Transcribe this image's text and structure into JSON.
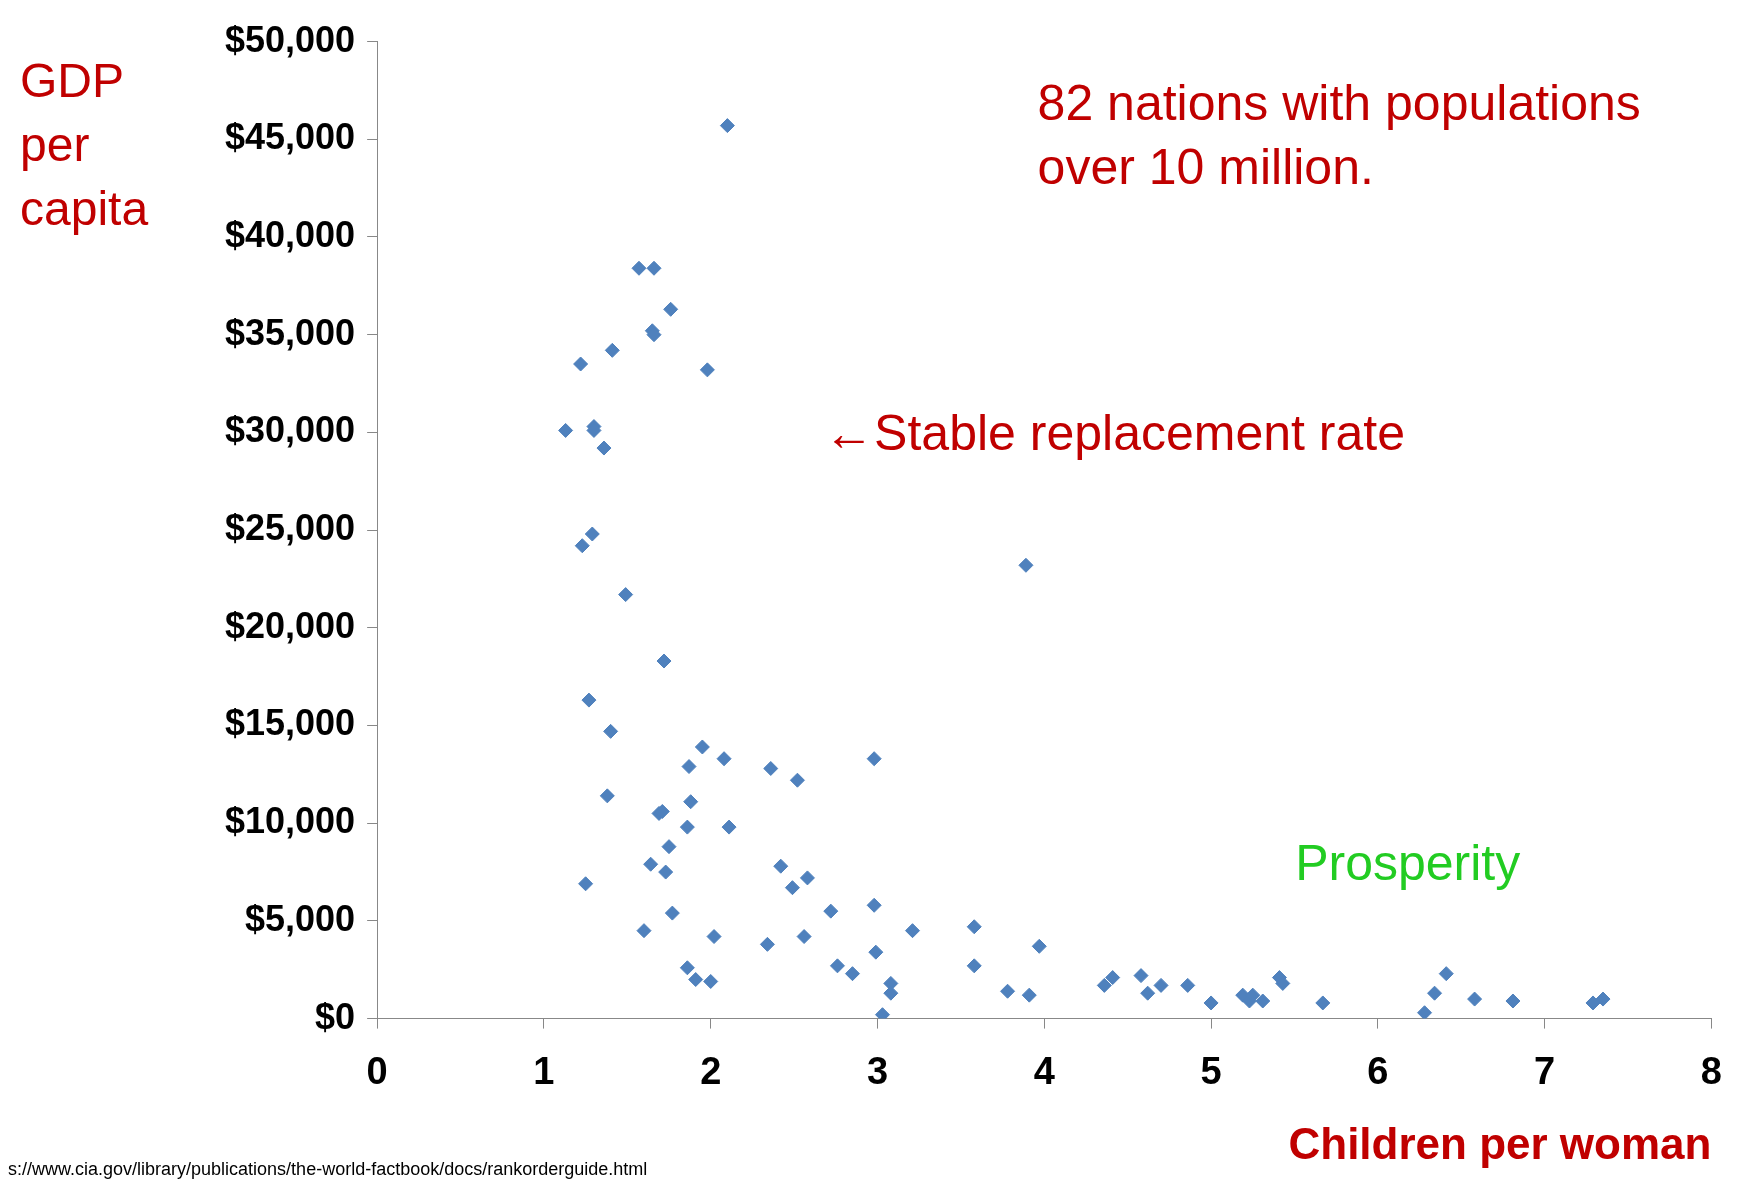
{
  "chart_data": {
    "type": "scatter",
    "ylabel": "GDP per capita",
    "xlabel": "Children per woman",
    "annotations": [
      "82 nations with populations over 10 million.",
      "←Stable replacement rate",
      "Prosperity",
      "s://www.cia.gov/library/publications/the-world-factbook/docs/rankorderguide.html"
    ],
    "xlim": [
      0,
      8
    ],
    "xticks": [
      0,
      1,
      2,
      3,
      4,
      5,
      6,
      7,
      8
    ],
    "ylim": [
      0,
      50000
    ],
    "yticks": [
      {
        "value": 0,
        "label": "$0"
      },
      {
        "value": 5000,
        "label": "$5,000"
      },
      {
        "value": 10000,
        "label": "$10,000"
      },
      {
        "value": 15000,
        "label": "$15,000"
      },
      {
        "value": 20000,
        "label": "$20,000"
      },
      {
        "value": 25000,
        "label": "$25,000"
      },
      {
        "value": 30000,
        "label": "$30,000"
      },
      {
        "value": 35000,
        "label": "$35,000"
      },
      {
        "value": 40000,
        "label": "$40,000"
      },
      {
        "value": 45000,
        "label": "$45,000"
      },
      {
        "value": 50000,
        "label": "$50,000"
      }
    ],
    "grid": false,
    "legend": false,
    "marker": "diamond",
    "series": [
      {
        "color": "#4f81bd",
        "x": [
          2.1,
          1.57,
          1.66,
          1.76,
          1.65,
          1.66,
          1.41,
          1.22,
          1.98,
          1.13,
          1.3,
          1.3,
          1.36,
          1.29,
          1.23,
          1.49,
          3.89,
          1.72,
          1.27,
          1.4,
          1.95,
          1.87,
          2.08,
          2.36,
          2.52,
          2.98,
          1.38,
          1.88,
          1.69,
          1.71,
          1.86,
          2.11,
          1.75,
          1.25,
          1.64,
          1.73,
          2.42,
          2.58,
          2.49,
          2.72,
          2.98,
          1.77,
          1.6,
          2.02,
          2.34,
          2.56,
          3.21,
          2.99,
          3.58,
          3.97,
          1.86,
          1.91,
          2.0,
          2.76,
          2.85,
          3.08,
          3.08,
          3.03,
          3.58,
          3.78,
          3.91,
          4.36,
          4.41,
          4.58,
          4.62,
          4.7,
          4.86,
          5.0,
          5.19,
          5.23,
          5.25,
          5.31,
          5.41,
          5.43,
          5.67,
          6.28,
          6.34,
          6.41,
          6.58,
          6.81,
          7.29,
          7.35
        ],
        "values": [
          45700,
          38400,
          38400,
          36300,
          35200,
          35000,
          34200,
          33500,
          33200,
          30100,
          30300,
          30100,
          29200,
          24800,
          24200,
          21700,
          23200,
          18300,
          16300,
          14700,
          13900,
          12900,
          13300,
          12800,
          12200,
          13300,
          11400,
          11100,
          10500,
          10600,
          9800,
          9800,
          8800,
          6900,
          7900,
          7500,
          7800,
          7200,
          6700,
          5500,
          5800,
          5400,
          4500,
          4200,
          3800,
          4200,
          4500,
          3400,
          4700,
          3700,
          2600,
          2000,
          1900,
          2700,
          2300,
          1800,
          1300,
          200,
          2700,
          1400,
          1200,
          1700,
          2100,
          2200,
          1300,
          1700,
          1700,
          800,
          1200,
          900,
          1200,
          900,
          2100,
          1800,
          800,
          300,
          1300,
          2300,
          1000,
          900,
          800,
          1000
        ]
      }
    ]
  }
}
